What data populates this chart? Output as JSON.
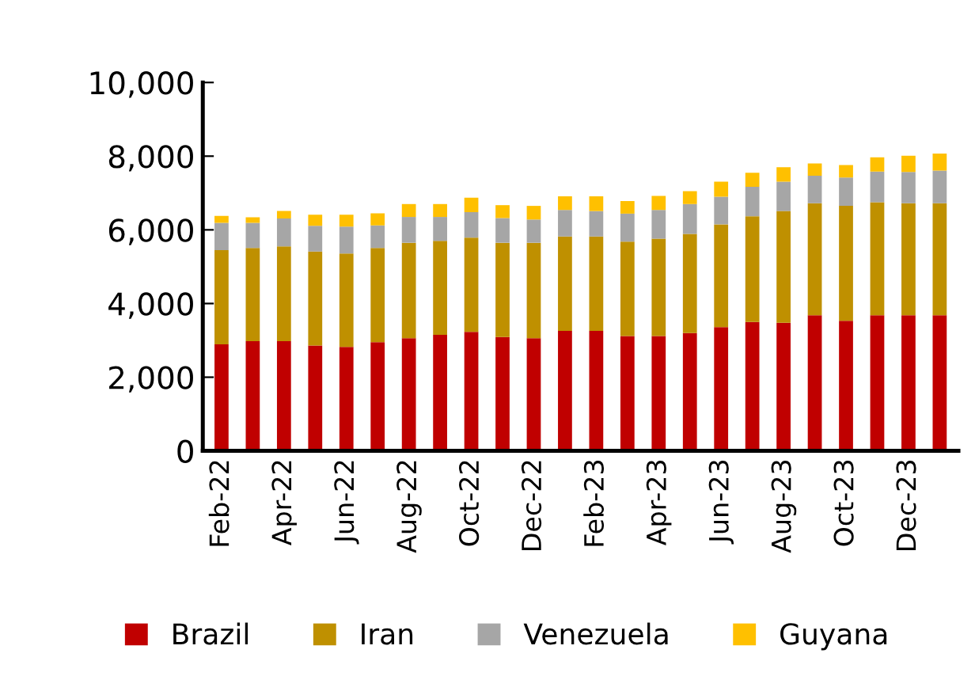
{
  "chart_data": {
    "type": "bar",
    "stacked": true,
    "categories": [
      "Feb-22",
      null,
      "Apr-22",
      null,
      "Jun-22",
      null,
      "Aug-22",
      null,
      "Oct-22",
      null,
      "Dec-22",
      null,
      "Feb-23",
      null,
      "Apr-23",
      null,
      "Jun-23",
      null,
      "Aug-23",
      null,
      "Oct-23",
      null,
      "Dec-23",
      null
    ],
    "series": [
      {
        "name": "Brazil",
        "color": "#c00000",
        "values": [
          2890,
          2980,
          2980,
          2860,
          2820,
          2950,
          3060,
          3150,
          3230,
          3090,
          3060,
          3260,
          3260,
          3120,
          3120,
          3200,
          3360,
          3500,
          3480,
          3680,
          3530,
          3680,
          3680,
          3680
        ]
      },
      {
        "name": "Iran",
        "color": "#bf9000",
        "values": [
          2560,
          2530,
          2570,
          2550,
          2540,
          2560,
          2590,
          2550,
          2560,
          2560,
          2590,
          2560,
          2560,
          2560,
          2640,
          2690,
          2790,
          2870,
          3030,
          3040,
          3120,
          3070,
          3040,
          3040
        ]
      },
      {
        "name": "Venezuela",
        "color": "#a6a6a6",
        "values": [
          740,
          680,
          760,
          700,
          730,
          610,
          700,
          650,
          690,
          670,
          630,
          720,
          690,
          760,
          780,
          810,
          750,
          800,
          800,
          750,
          770,
          830,
          850,
          890
        ]
      },
      {
        "name": "Guyana",
        "color": "#ffc000",
        "values": [
          190,
          150,
          200,
          300,
          320,
          330,
          350,
          350,
          390,
          350,
          370,
          370,
          400,
          340,
          380,
          350,
          410,
          380,
          390,
          330,
          340,
          390,
          440,
          460
        ]
      }
    ],
    "ylim": [
      0,
      10000
    ],
    "yticks": [
      {
        "value": 0,
        "label": "0"
      },
      {
        "value": 2000,
        "label": "2,000"
      },
      {
        "value": 4000,
        "label": "4,000"
      },
      {
        "value": 6000,
        "label": "6,000"
      },
      {
        "value": 8000,
        "label": "8,000"
      },
      {
        "value": 10000,
        "label": "10,000"
      }
    ],
    "grid": false,
    "legend": "bottom"
  }
}
